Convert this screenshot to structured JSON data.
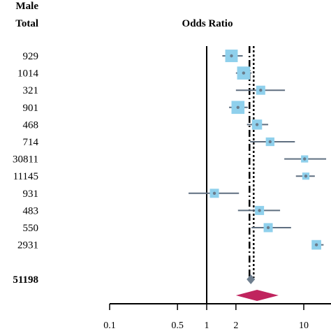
{
  "headers": {
    "group_label": "Male",
    "total_label": "Total",
    "chart_title": "Odds Ratio"
  },
  "chart_data": {
    "type": "forest",
    "title": "Odds Ratio",
    "xscale": "log",
    "xlim": [
      0.1,
      13
    ],
    "xticks": [
      0.1,
      0.5,
      1,
      2,
      10
    ],
    "xtick_labels": [
      "0.1",
      "0.5",
      "1",
      "2",
      "10"
    ],
    "reference_line": 1,
    "pooled_dashed_line": 2.9,
    "rows": [
      {
        "total": "929",
        "or": 1.8,
        "ci": [
          1.45,
          2.35
        ],
        "weight": 0.85
      },
      {
        "total": "1014",
        "or": 2.4,
        "ci": [
          2.0,
          2.9
        ],
        "weight": 0.9
      },
      {
        "total": "321",
        "or": 3.6,
        "ci": [
          2.0,
          6.4
        ],
        "weight": 0.5
      },
      {
        "total": "901",
        "or": 2.1,
        "ci": [
          1.7,
          2.65
        ],
        "weight": 0.9
      },
      {
        "total": "468",
        "or": 3.3,
        "ci": [
          2.6,
          4.3
        ],
        "weight": 0.6
      },
      {
        "total": "714",
        "or": 4.5,
        "ci": [
          2.8,
          8.1
        ],
        "weight": 0.45
      },
      {
        "total": "30811",
        "or": 10.2,
        "ci": [
          6.3,
          17.0
        ],
        "weight": 0.3
      },
      {
        "total": "11145",
        "or": 10.5,
        "ci": [
          8.3,
          13.0
        ],
        "weight": 0.3
      },
      {
        "total": "931",
        "or": 1.2,
        "ci": [
          0.65,
          2.15
        ],
        "weight": 0.5
      },
      {
        "total": "483",
        "or": 3.5,
        "ci": [
          2.1,
          5.7
        ],
        "weight": 0.5
      },
      {
        "total": "550",
        "or": 4.3,
        "ci": [
          2.9,
          7.4
        ],
        "weight": 0.5
      },
      {
        "total": "2931",
        "or": 13.5,
        "ci": [
          12.5,
          16.0
        ],
        "weight": 0.55
      }
    ],
    "pooled": {
      "total": "51198",
      "or": 2.85
    },
    "prediction": {
      "center": 3.3,
      "lower": 2.0,
      "upper": 5.5
    },
    "colors": {
      "box": "#8fd0ec",
      "ci_line": "#5f6f80",
      "point": "#6a7c8c",
      "pooled_diamond": "#6f7f8f",
      "prediction_diamond": "#c0245e",
      "axis": "#000000"
    }
  }
}
